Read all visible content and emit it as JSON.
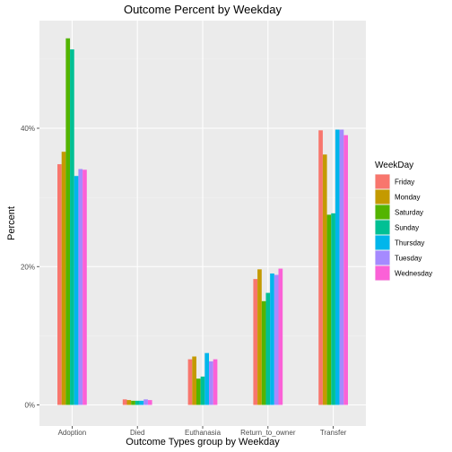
{
  "chart_data": {
    "type": "bar",
    "title": "Outcome Percent by Weekday",
    "xlabel": "Outcome Types group by Weekday",
    "ylabel": "Percent",
    "categories": [
      "Adoption",
      "Died",
      "Euthanasia",
      "Return_to_owner",
      "Transfer"
    ],
    "ylim": [
      0,
      58
    ],
    "yticks": [
      {
        "value": 0,
        "label": "0%"
      },
      {
        "value": 20,
        "label": "20%"
      },
      {
        "value": 40,
        "label": "40%"
      }
    ],
    "grid": true,
    "legend": {
      "title": "WeekDay",
      "position": "right"
    },
    "series": [
      {
        "name": "Friday",
        "color": "#F8766D",
        "values": [
          34.8,
          0.8,
          6.6,
          18.2,
          39.7
        ]
      },
      {
        "name": "Monday",
        "color": "#C49A00",
        "values": [
          36.6,
          0.7,
          7.0,
          19.6,
          36.2
        ]
      },
      {
        "name": "Saturday",
        "color": "#53B400",
        "values": [
          53.0,
          0.6,
          3.8,
          15.0,
          27.5
        ]
      },
      {
        "name": "Sunday",
        "color": "#00C094",
        "values": [
          51.4,
          0.6,
          4.1,
          16.2,
          27.7
        ]
      },
      {
        "name": "Thursday",
        "color": "#00B6EB",
        "values": [
          33.1,
          0.6,
          7.5,
          19.0,
          39.8
        ]
      },
      {
        "name": "Tuesday",
        "color": "#A58AFF",
        "values": [
          34.1,
          0.8,
          6.3,
          18.8,
          39.8
        ]
      },
      {
        "name": "Wednesday",
        "color": "#FB61D7",
        "values": [
          34.0,
          0.7,
          6.6,
          19.7,
          39.0
        ]
      }
    ]
  }
}
